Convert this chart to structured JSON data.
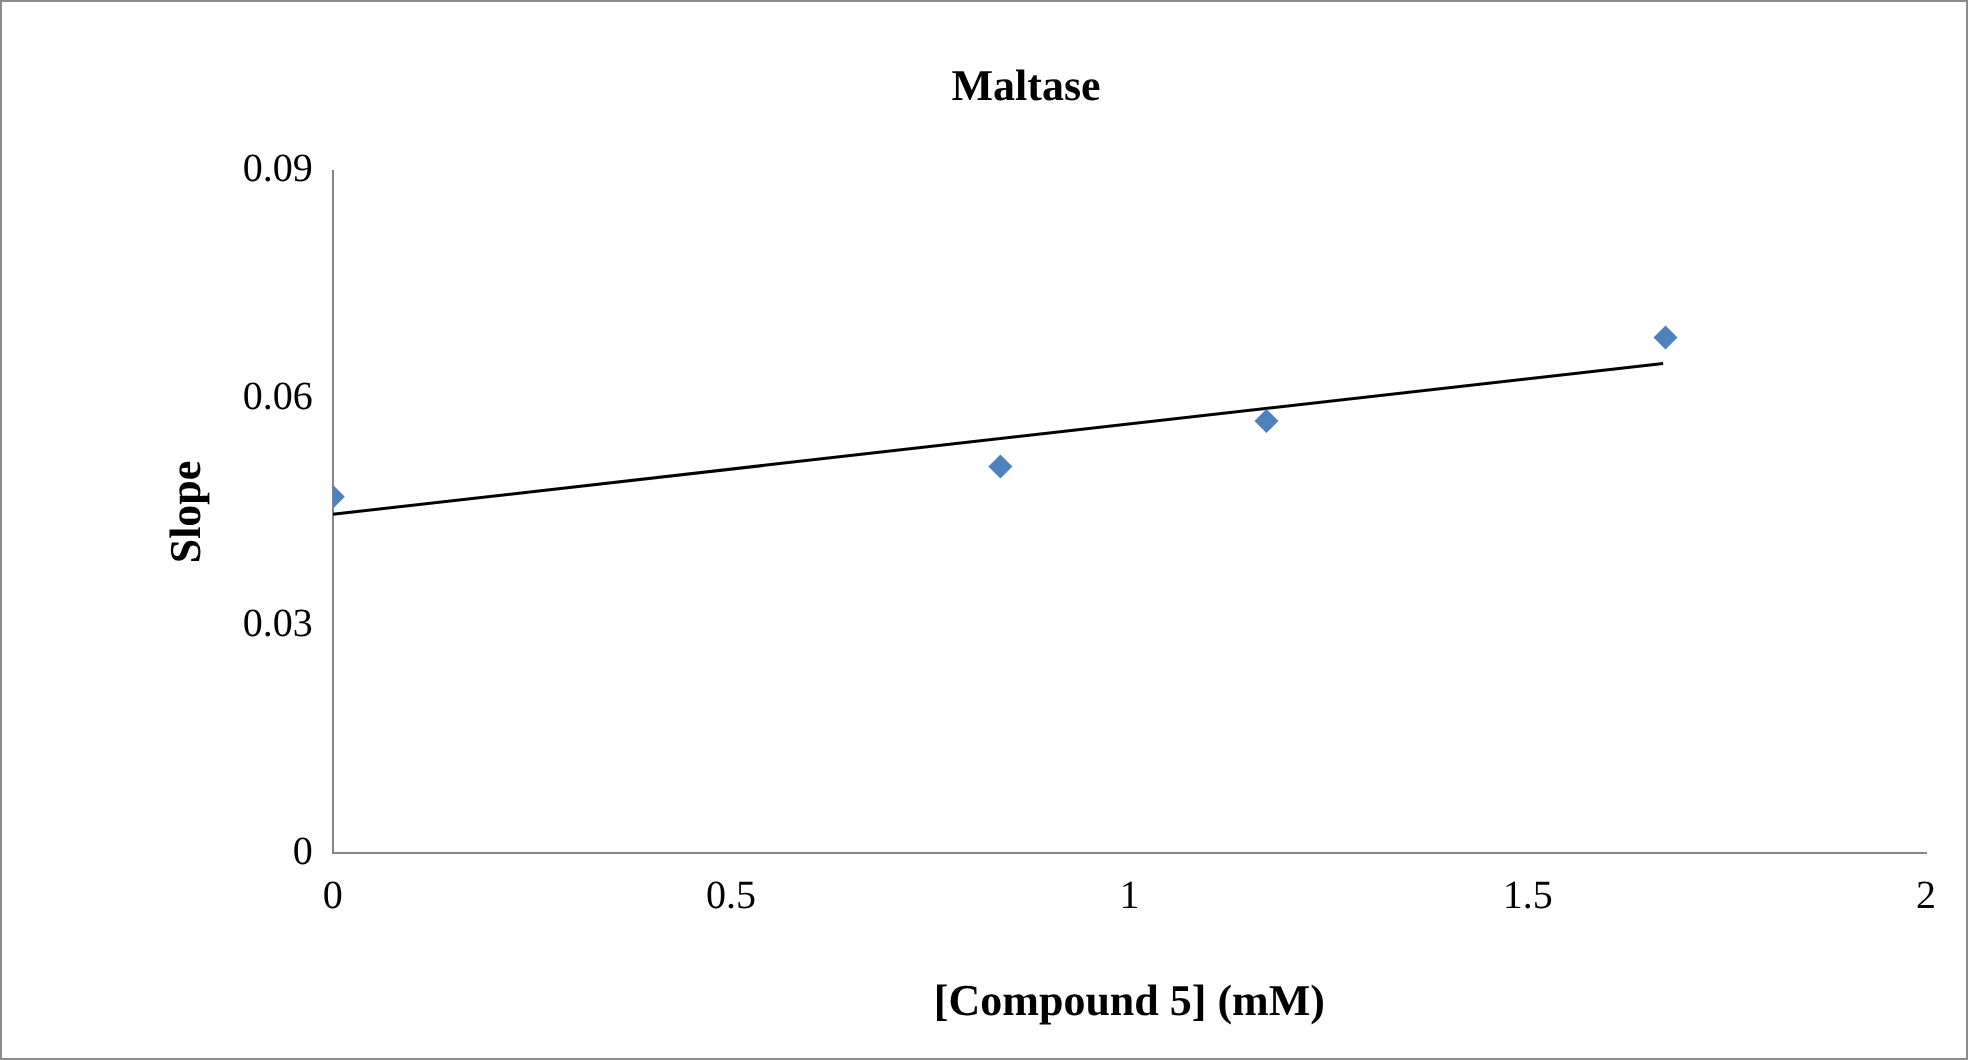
{
  "chart_data": {
    "type": "scatter",
    "title": "Maltase",
    "xlabel": "[Compound 5] (mM)",
    "ylabel": "Slope",
    "xlim": [
      0,
      2
    ],
    "xticks": [
      0,
      0.5,
      1,
      1.5,
      2
    ],
    "ylim": [
      0,
      0.09
    ],
    "yticks": [
      0,
      0.03,
      0.06,
      0.09
    ],
    "grid": false,
    "legend": false,
    "marker": "diamond",
    "series": [
      {
        "type": "scatter",
        "color": "#4f81bd",
        "x": [
          0,
          0.838,
          1.172,
          1.673
        ],
        "values": [
          0.047,
          0.051,
          0.057,
          0.068
        ]
      },
      {
        "type": "line",
        "color": "#000000",
        "marker": "none",
        "line_style": "solid",
        "x": [
          0,
          1.67
        ],
        "values": [
          0.0447,
          0.0646
        ]
      }
    ]
  }
}
